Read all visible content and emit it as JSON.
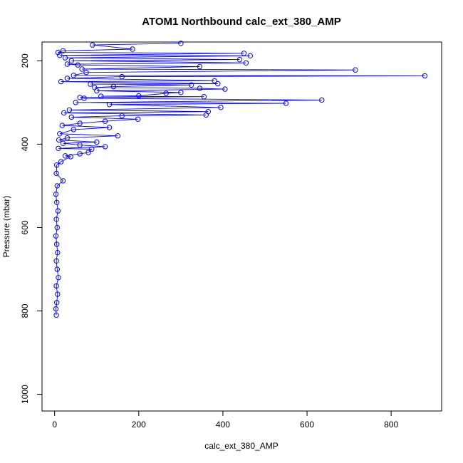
{
  "chart_data": {
    "type": "scatter",
    "title": "ATOM1 Northbound calc_ext_380_AMP",
    "xlabel": "calc_ext_380_AMP",
    "ylabel": "Pressure (mbar)",
    "xlim": [
      -30,
      920
    ],
    "ylim": [
      1040,
      155
    ],
    "x_ticks": [
      0,
      200,
      400,
      600,
      800
    ],
    "y_ticks": [
      200,
      400,
      600,
      800,
      1000
    ],
    "y_reversed": true,
    "grid": false,
    "legend": "none",
    "connected": true,
    "color": "#0000ff",
    "series": [
      {
        "points": [
          [
            300,
            158
          ],
          [
            90,
            162
          ],
          [
            185,
            172
          ],
          [
            20,
            176
          ],
          [
            450,
            182
          ],
          [
            465,
            188
          ],
          [
            440,
            197
          ],
          [
            455,
            205
          ],
          [
            30,
            208
          ],
          [
            345,
            214
          ],
          [
            715,
            222
          ],
          [
            880,
            236
          ],
          [
            160,
            238
          ],
          [
            380,
            248
          ],
          [
            388,
            255
          ],
          [
            325,
            258
          ],
          [
            140,
            262
          ],
          [
            95,
            264
          ],
          [
            345,
            266
          ],
          [
            405,
            268
          ],
          [
            300,
            276
          ],
          [
            265,
            278
          ],
          [
            200,
            284
          ],
          [
            110,
            285
          ],
          [
            60,
            288
          ],
          [
            355,
            286
          ],
          [
            635,
            294
          ],
          [
            550,
            302
          ],
          [
            130,
            305
          ],
          [
            395,
            312
          ],
          [
            365,
            322
          ],
          [
            360,
            330
          ],
          [
            160,
            332
          ],
          [
            198,
            340
          ],
          [
            120,
            345
          ],
          [
            60,
            350
          ],
          [
            130,
            360
          ],
          [
            150,
            380
          ],
          [
            100,
            395
          ],
          [
            60,
            402
          ],
          [
            120,
            406
          ],
          [
            88,
            412
          ],
          [
            80,
            420
          ],
          [
            60,
            423
          ],
          [
            38,
            430
          ],
          [
            25,
            428
          ],
          [
            15,
            442
          ],
          [
            20,
            488
          ],
          [
            8,
            180
          ],
          [
            12,
            187
          ],
          [
            25,
            193
          ],
          [
            40,
            200
          ],
          [
            55,
            210
          ],
          [
            65,
            220
          ],
          [
            75,
            228
          ],
          [
            45,
            235
          ],
          [
            30,
            242
          ],
          [
            15,
            250
          ],
          [
            85,
            256
          ],
          [
            100,
            272
          ],
          [
            70,
            290
          ],
          [
            50,
            300
          ],
          [
            35,
            318
          ],
          [
            22,
            325
          ],
          [
            40,
            335
          ],
          [
            18,
            355
          ],
          [
            45,
            365
          ],
          [
            12,
            375
          ],
          [
            30,
            385
          ],
          [
            10,
            390
          ],
          [
            20,
            398
          ],
          [
            9,
            410
          ],
          [
            5,
            450
          ],
          [
            4,
            470
          ],
          [
            6,
            500
          ],
          [
            3,
            520
          ],
          [
            5,
            540
          ],
          [
            8,
            560
          ],
          [
            4,
            580
          ],
          [
            6,
            600
          ],
          [
            3,
            620
          ],
          [
            5,
            640
          ],
          [
            7,
            660
          ],
          [
            4,
            680
          ],
          [
            6,
            700
          ],
          [
            9,
            720
          ],
          [
            4,
            740
          ],
          [
            7,
            760
          ],
          [
            5,
            780
          ],
          [
            3,
            795
          ],
          [
            4,
            810
          ]
        ]
      }
    ]
  }
}
